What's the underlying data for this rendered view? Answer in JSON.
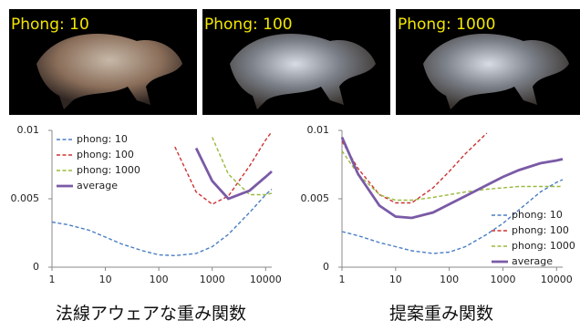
{
  "images": [
    {
      "label": "Phong: 10"
    },
    {
      "label": "Phong: 100"
    },
    {
      "label": "Phong: 1000"
    }
  ],
  "chart_data": [
    {
      "type": "line",
      "caption": "法線アウェアな重み関数",
      "xscale": "log",
      "grid": false,
      "legend": "upper left",
      "x": [
        1,
        2,
        5,
        10,
        20,
        50,
        100,
        200,
        500,
        1000,
        2000,
        5000,
        10000,
        13000
      ],
      "xlim": [
        1,
        13000
      ],
      "xticks": [
        1,
        10,
        100,
        1000,
        10000
      ],
      "ylim": [
        0,
        0.01
      ],
      "yticks": [
        0,
        0.005,
        0.01
      ],
      "series": [
        {
          "name": "phong: 10",
          "color": "#4a7ec4",
          "style": "dashed",
          "values": [
            0.0033,
            0.0031,
            0.0027,
            0.0022,
            0.0017,
            0.0012,
            0.0009,
            0.00085,
            0.001,
            0.0015,
            0.0024,
            0.004,
            0.0053,
            0.0057
          ]
        },
        {
          "name": "phong: 100",
          "color": "#cc3333",
          "style": "dashed",
          "values": [
            null,
            null,
            null,
            null,
            null,
            null,
            null,
            0.0088,
            0.0055,
            0.0046,
            0.0052,
            0.0074,
            0.0093,
            0.0099
          ]
        },
        {
          "name": "phong: 1000",
          "color": "#98b93c",
          "style": "dashed",
          "values": [
            null,
            null,
            null,
            null,
            null,
            null,
            null,
            null,
            null,
            0.0095,
            0.0068,
            0.0053,
            0.0053,
            0.0054
          ]
        },
        {
          "name": "average",
          "color": "#7a5aa6",
          "style": "solid",
          "values": [
            null,
            null,
            null,
            null,
            null,
            null,
            null,
            null,
            0.0087,
            0.0063,
            0.005,
            0.0056,
            0.0066,
            0.007
          ]
        }
      ]
    },
    {
      "type": "line",
      "caption": "提案重み関数",
      "xscale": "log",
      "grid": false,
      "legend": "lower right",
      "x": [
        1,
        2,
        5,
        10,
        20,
        50,
        100,
        200,
        500,
        1000,
        2000,
        5000,
        10000,
        13000
      ],
      "xlim": [
        1,
        13000
      ],
      "xticks": [
        1,
        10,
        100,
        1000,
        10000
      ],
      "ylim": [
        0,
        0.01
      ],
      "yticks": [
        0,
        0.005,
        0.01
      ],
      "series": [
        {
          "name": "phong: 10",
          "color": "#4a7ec4",
          "style": "dashed",
          "values": [
            0.0026,
            0.0023,
            0.0018,
            0.0015,
            0.0012,
            0.001,
            0.0011,
            0.0015,
            0.0024,
            0.0032,
            0.0042,
            0.0055,
            0.0062,
            0.0064
          ]
        },
        {
          "name": "phong: 100",
          "color": "#cc3333",
          "style": "dashed",
          "values": [
            0.0092,
            0.0072,
            0.0053,
            0.0047,
            0.0047,
            0.0058,
            0.007,
            0.0083,
            0.0098,
            null,
            null,
            null,
            null,
            null
          ]
        },
        {
          "name": "phong: 1000",
          "color": "#98b93c",
          "style": "dashed",
          "values": [
            0.0085,
            0.0068,
            0.0053,
            0.0049,
            0.0049,
            0.0051,
            0.0053,
            0.0055,
            0.0057,
            0.0058,
            0.0059,
            0.0059,
            0.0059,
            0.0059
          ]
        },
        {
          "name": "average",
          "color": "#7a5aa6",
          "style": "solid",
          "values": [
            0.0095,
            0.0068,
            0.0045,
            0.0037,
            0.0036,
            0.004,
            0.0046,
            0.0052,
            0.006,
            0.0066,
            0.0071,
            0.0076,
            0.0078,
            0.0079
          ]
        }
      ]
    }
  ]
}
